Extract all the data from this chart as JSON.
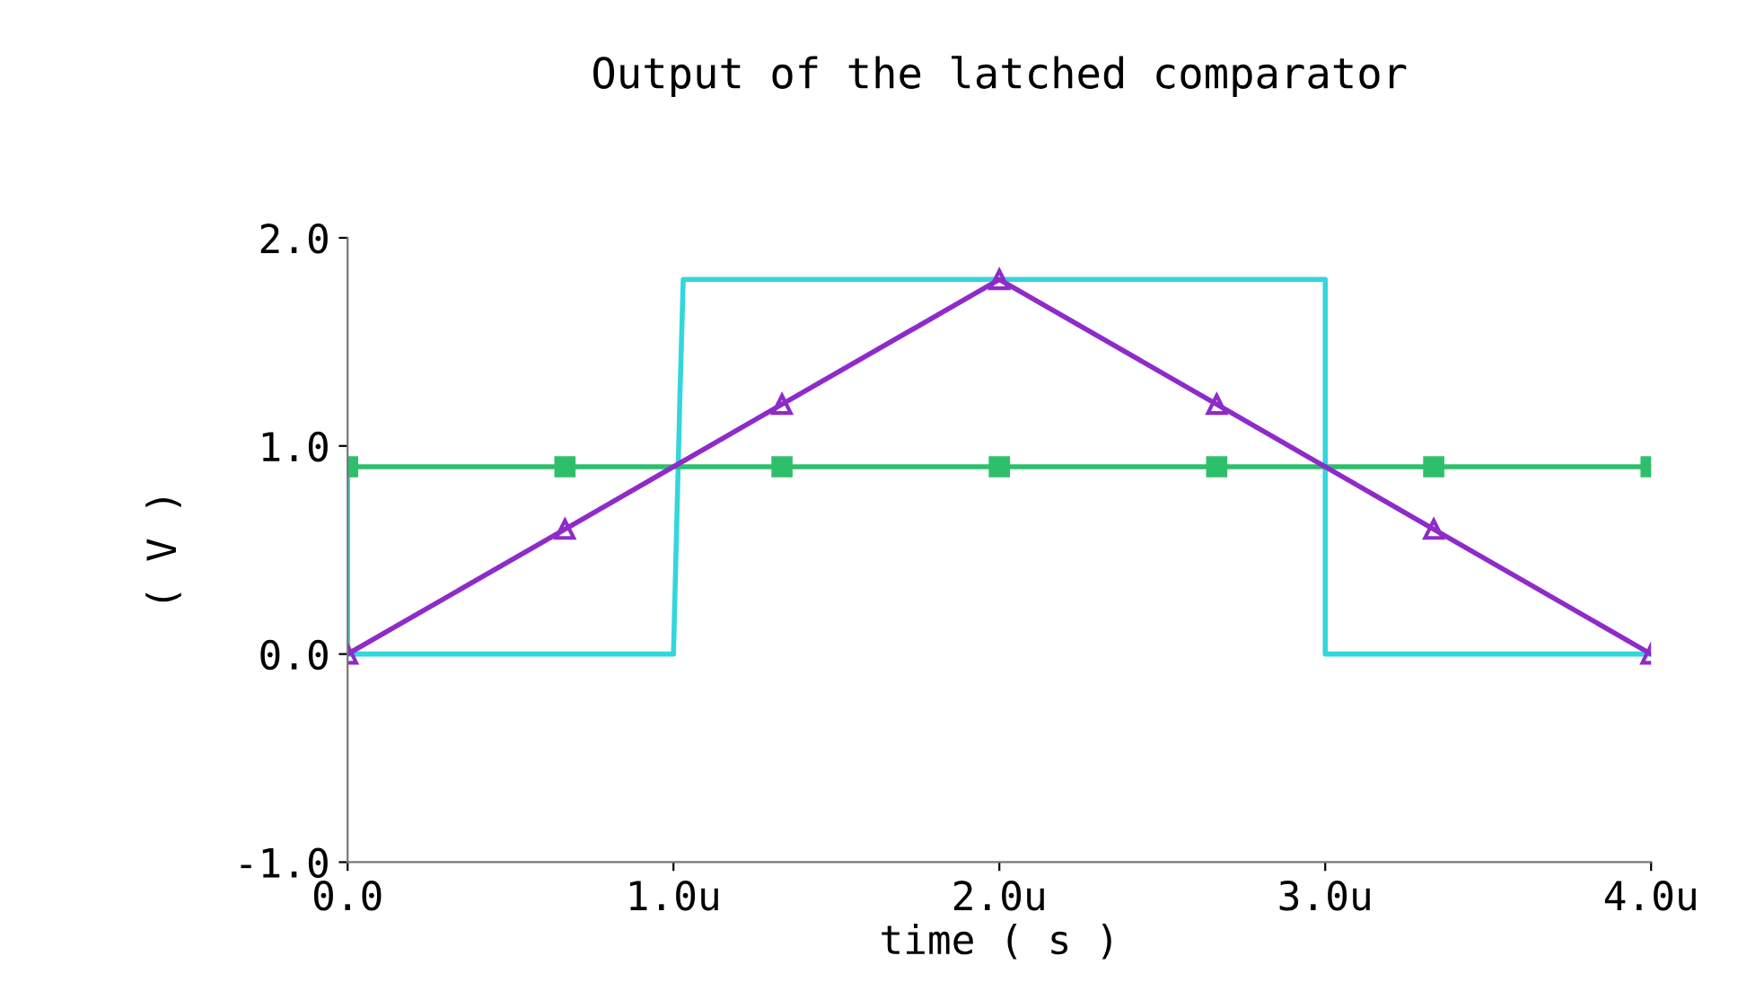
{
  "chart_data": {
    "type": "line",
    "title": "Output of the latched comparator",
    "xlabel": "time ( s )",
    "ylabel": "( V )",
    "xlim": [
      0,
      4
    ],
    "xticks": [
      {
        "value": 0,
        "label": "0.0"
      },
      {
        "value": 1,
        "label": "1.0u"
      },
      {
        "value": 2,
        "label": "2.0u"
      },
      {
        "value": 3,
        "label": "3.0u"
      },
      {
        "value": 4,
        "label": "4.0u"
      }
    ],
    "ylim": [
      -1,
      2
    ],
    "yticks": [
      {
        "value": -1,
        "label": "-1.0"
      },
      {
        "value": 0,
        "label": "0.0"
      },
      {
        "value": 1,
        "label": "1.0"
      },
      {
        "value": 2,
        "label": "2.0"
      }
    ],
    "grid": false,
    "legend": false,
    "series": [
      {
        "color": "#33d6dc",
        "marker": "none",
        "x": [
          0,
          0,
          1.0,
          1.02,
          1.03,
          3.0,
          3.0,
          4.0
        ],
        "values": [
          0.9,
          0,
          0,
          1.25,
          1.8,
          1.8,
          0,
          0
        ]
      },
      {
        "color": "#2ebf6a",
        "marker": "square",
        "x": [
          0,
          0.667,
          1.333,
          2.0,
          2.667,
          3.333,
          4.0
        ],
        "values": [
          0.9,
          0.9,
          0.9,
          0.9,
          0.9,
          0.9,
          0.9
        ]
      },
      {
        "color": "#8e2bc9",
        "marker": "triangle",
        "x": [
          0,
          0.667,
          1.333,
          2.0,
          2.667,
          3.333,
          4.0
        ],
        "values": [
          0,
          0.6,
          1.2,
          1.8,
          1.2,
          0.6,
          0
        ]
      }
    ]
  }
}
